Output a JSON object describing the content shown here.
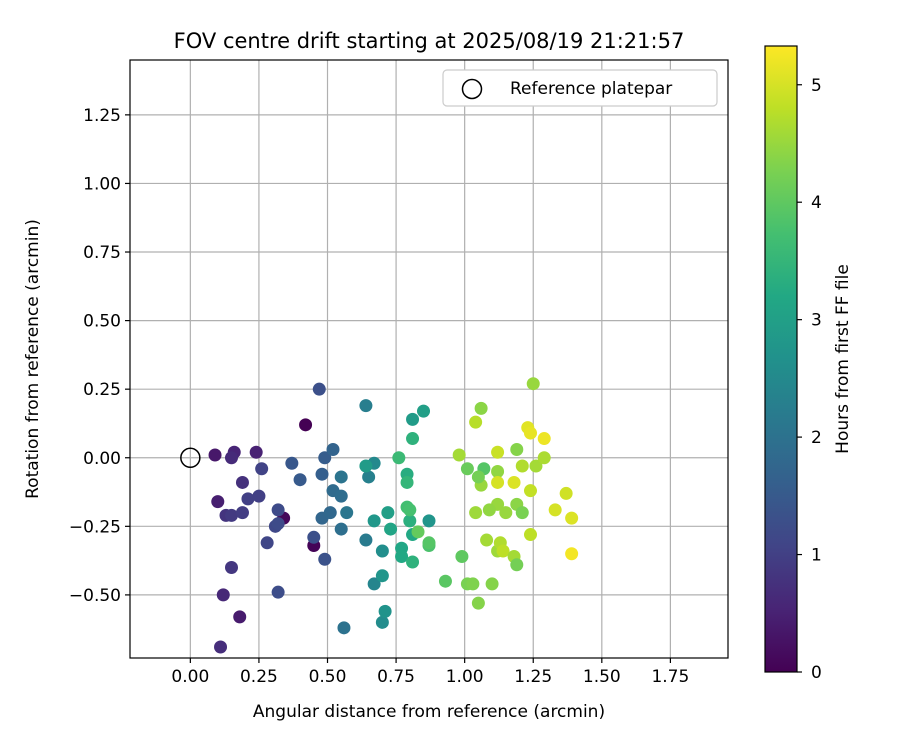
{
  "chart_data": {
    "type": "scatter",
    "title": "FOV centre drift starting at 2025/08/19 21:21:57",
    "xlabel": "Angular distance from reference (arcmin)",
    "ylabel": "Rotation from reference (arcmin)",
    "xlim": [
      -0.22,
      1.96
    ],
    "ylim": [
      -0.73,
      1.45
    ],
    "xticks": [
      0.0,
      0.25,
      0.5,
      0.75,
      1.0,
      1.25,
      1.5,
      1.75
    ],
    "xtick_labels": [
      "0.00",
      "0.25",
      "0.50",
      "0.75",
      "1.00",
      "1.25",
      "1.50",
      "1.75"
    ],
    "yticks": [
      -0.5,
      -0.25,
      0.0,
      0.25,
      0.5,
      0.75,
      1.0,
      1.25
    ],
    "ytick_labels": [
      "−0.50",
      "−0.25",
      "0.00",
      "0.25",
      "0.50",
      "0.75",
      "1.00",
      "1.25"
    ],
    "grid": true,
    "legend": {
      "position": "top-right",
      "label": "Reference platepar"
    },
    "reference_point": {
      "x": 0.0,
      "y": 0.0,
      "marker": "open-circle"
    },
    "colorbar": {
      "label": "Hours from first FF file",
      "colormap": "viridis",
      "range": [
        0,
        5.33
      ],
      "ticks": [
        0,
        1,
        2,
        3,
        4,
        5
      ],
      "tick_labels": [
        "0",
        "1",
        "2",
        "3",
        "4",
        "5"
      ]
    },
    "points": [
      {
        "x": 0.42,
        "y": 0.12,
        "h": 0.0
      },
      {
        "x": 0.45,
        "y": -0.32,
        "h": 0.05
      },
      {
        "x": 0.34,
        "y": -0.22,
        "h": 0.1
      },
      {
        "x": 0.09,
        "y": 0.01,
        "h": 0.35
      },
      {
        "x": 0.18,
        "y": -0.58,
        "h": 0.4
      },
      {
        "x": 0.1,
        "y": -0.16,
        "h": 0.45
      },
      {
        "x": 0.24,
        "y": 0.02,
        "h": 0.5
      },
      {
        "x": 0.16,
        "y": 0.02,
        "h": 0.55
      },
      {
        "x": 0.12,
        "y": -0.5,
        "h": 0.6
      },
      {
        "x": 0.15,
        "y": 0.0,
        "h": 0.65
      },
      {
        "x": 0.11,
        "y": -0.69,
        "h": 0.7
      },
      {
        "x": 0.19,
        "y": -0.09,
        "h": 0.75
      },
      {
        "x": 0.13,
        "y": -0.21,
        "h": 0.8
      },
      {
        "x": 0.15,
        "y": -0.4,
        "h": 0.85
      },
      {
        "x": 0.15,
        "y": -0.21,
        "h": 0.9
      },
      {
        "x": 0.19,
        "y": -0.2,
        "h": 0.95
      },
      {
        "x": 0.21,
        "y": -0.15,
        "h": 1.0
      },
      {
        "x": 0.25,
        "y": -0.14,
        "h": 1.0
      },
      {
        "x": 0.26,
        "y": -0.04,
        "h": 1.05
      },
      {
        "x": 0.28,
        "y": -0.31,
        "h": 1.1
      },
      {
        "x": 0.31,
        "y": -0.25,
        "h": 1.15
      },
      {
        "x": 0.32,
        "y": -0.24,
        "h": 1.2
      },
      {
        "x": 0.32,
        "y": -0.19,
        "h": 1.2
      },
      {
        "x": 0.32,
        "y": -0.49,
        "h": 1.25
      },
      {
        "x": 0.45,
        "y": -0.29,
        "h": 1.3
      },
      {
        "x": 0.47,
        "y": 0.25,
        "h": 1.3
      },
      {
        "x": 0.49,
        "y": -0.37,
        "h": 1.35
      },
      {
        "x": 0.37,
        "y": -0.02,
        "h": 1.45
      },
      {
        "x": 0.4,
        "y": -0.08,
        "h": 1.5
      },
      {
        "x": 0.49,
        "y": 0.0,
        "h": 1.55
      },
      {
        "x": 0.48,
        "y": -0.06,
        "h": 1.6
      },
      {
        "x": 0.52,
        "y": 0.03,
        "h": 1.7
      },
      {
        "x": 0.48,
        "y": -0.22,
        "h": 1.75
      },
      {
        "x": 0.51,
        "y": -0.2,
        "h": 1.8
      },
      {
        "x": 0.52,
        "y": -0.12,
        "h": 1.85
      },
      {
        "x": 0.55,
        "y": -0.14,
        "h": 1.9
      },
      {
        "x": 0.55,
        "y": -0.26,
        "h": 1.95
      },
      {
        "x": 0.56,
        "y": -0.62,
        "h": 2.0
      },
      {
        "x": 0.55,
        "y": -0.07,
        "h": 2.05
      },
      {
        "x": 0.57,
        "y": -0.2,
        "h": 2.1
      },
      {
        "x": 0.64,
        "y": -0.3,
        "h": 2.2
      },
      {
        "x": 0.64,
        "y": 0.19,
        "h": 2.25
      },
      {
        "x": 0.65,
        "y": -0.07,
        "h": 2.3
      },
      {
        "x": 0.67,
        "y": -0.46,
        "h": 2.4
      },
      {
        "x": 0.67,
        "y": -0.02,
        "h": 2.5
      },
      {
        "x": 0.7,
        "y": -0.6,
        "h": 2.55
      },
      {
        "x": 0.7,
        "y": -0.34,
        "h": 2.6
      },
      {
        "x": 0.71,
        "y": -0.56,
        "h": 2.7
      },
      {
        "x": 0.7,
        "y": -0.43,
        "h": 2.75
      },
      {
        "x": 0.67,
        "y": -0.23,
        "h": 2.8
      },
      {
        "x": 0.64,
        "y": -0.03,
        "h": 2.9
      },
      {
        "x": 0.72,
        "y": -0.2,
        "h": 3.0
      },
      {
        "x": 0.73,
        "y": -0.26,
        "h": 3.1
      },
      {
        "x": 0.77,
        "y": -0.33,
        "h": 3.15
      },
      {
        "x": 0.77,
        "y": -0.36,
        "h": 3.2
      },
      {
        "x": 0.79,
        "y": -0.06,
        "h": 3.3
      },
      {
        "x": 0.8,
        "y": -0.23,
        "h": 3.35
      },
      {
        "x": 0.81,
        "y": -0.38,
        "h": 3.4
      },
      {
        "x": 0.81,
        "y": 0.14,
        "h": 2.9
      },
      {
        "x": 0.85,
        "y": 0.17,
        "h": 3.0
      },
      {
        "x": 0.87,
        "y": -0.23,
        "h": 2.75
      },
      {
        "x": 0.81,
        "y": -0.28,
        "h": 3.2
      },
      {
        "x": 0.81,
        "y": 0.07,
        "h": 3.4
      },
      {
        "x": 0.79,
        "y": -0.09,
        "h": 3.5
      },
      {
        "x": 0.76,
        "y": 0.0,
        "h": 3.6
      },
      {
        "x": 0.79,
        "y": -0.18,
        "h": 3.7
      },
      {
        "x": 0.8,
        "y": -0.19,
        "h": 3.75
      },
      {
        "x": 0.83,
        "y": -0.27,
        "h": 4.05
      },
      {
        "x": 0.87,
        "y": -0.32,
        "h": 3.8
      },
      {
        "x": 0.87,
        "y": -0.31,
        "h": 3.9
      },
      {
        "x": 0.93,
        "y": -0.45,
        "h": 3.95
      },
      {
        "x": 0.99,
        "y": -0.36,
        "h": 4.0
      },
      {
        "x": 1.01,
        "y": -0.04,
        "h": 4.1
      },
      {
        "x": 1.01,
        "y": -0.46,
        "h": 4.25
      },
      {
        "x": 1.03,
        "y": -0.46,
        "h": 4.3
      },
      {
        "x": 1.05,
        "y": -0.53,
        "h": 4.35
      },
      {
        "x": 1.06,
        "y": 0.18,
        "h": 4.4
      },
      {
        "x": 1.06,
        "y": -0.1,
        "h": 4.5
      },
      {
        "x": 1.1,
        "y": -0.46,
        "h": 4.35
      },
      {
        "x": 1.12,
        "y": -0.05,
        "h": 4.45
      },
      {
        "x": 1.12,
        "y": -0.34,
        "h": 4.55
      },
      {
        "x": 1.12,
        "y": -0.17,
        "h": 4.5
      },
      {
        "x": 1.09,
        "y": -0.19,
        "h": 4.45
      },
      {
        "x": 1.07,
        "y": -0.04,
        "h": 3.9
      },
      {
        "x": 1.05,
        "y": -0.07,
        "h": 4.2
      },
      {
        "x": 0.98,
        "y": 0.01,
        "h": 4.6
      },
      {
        "x": 1.04,
        "y": 0.13,
        "h": 4.75
      },
      {
        "x": 1.04,
        "y": -0.2,
        "h": 4.55
      },
      {
        "x": 1.08,
        "y": -0.3,
        "h": 4.6
      },
      {
        "x": 1.13,
        "y": -0.31,
        "h": 4.7
      },
      {
        "x": 1.14,
        "y": -0.34,
        "h": 4.8
      },
      {
        "x": 1.15,
        "y": -0.2,
        "h": 4.5
      },
      {
        "x": 1.18,
        "y": -0.36,
        "h": 4.6
      },
      {
        "x": 1.19,
        "y": -0.39,
        "h": 4.2
      },
      {
        "x": 1.19,
        "y": -0.17,
        "h": 4.4
      },
      {
        "x": 1.19,
        "y": 0.03,
        "h": 4.35
      },
      {
        "x": 1.21,
        "y": -0.2,
        "h": 4.25
      },
      {
        "x": 1.21,
        "y": -0.03,
        "h": 4.7
      },
      {
        "x": 1.12,
        "y": 0.02,
        "h": 4.9
      },
      {
        "x": 1.12,
        "y": -0.09,
        "h": 5.0
      },
      {
        "x": 1.18,
        "y": -0.09,
        "h": 5.05
      },
      {
        "x": 1.24,
        "y": -0.28,
        "h": 4.8
      },
      {
        "x": 1.24,
        "y": -0.12,
        "h": 4.85
      },
      {
        "x": 1.25,
        "y": 0.27,
        "h": 4.5
      },
      {
        "x": 1.26,
        "y": -0.03,
        "h": 4.6
      },
      {
        "x": 1.23,
        "y": 0.11,
        "h": 5.1
      },
      {
        "x": 1.24,
        "y": 0.09,
        "h": 5.15
      },
      {
        "x": 1.29,
        "y": 0.07,
        "h": 5.2
      },
      {
        "x": 1.29,
        "y": 0.0,
        "h": 4.65
      },
      {
        "x": 1.33,
        "y": -0.19,
        "h": 5.0
      },
      {
        "x": 1.37,
        "y": -0.13,
        "h": 4.95
      },
      {
        "x": 1.39,
        "y": -0.22,
        "h": 5.05
      },
      {
        "x": 1.39,
        "y": -0.35,
        "h": 5.25
      }
    ]
  }
}
